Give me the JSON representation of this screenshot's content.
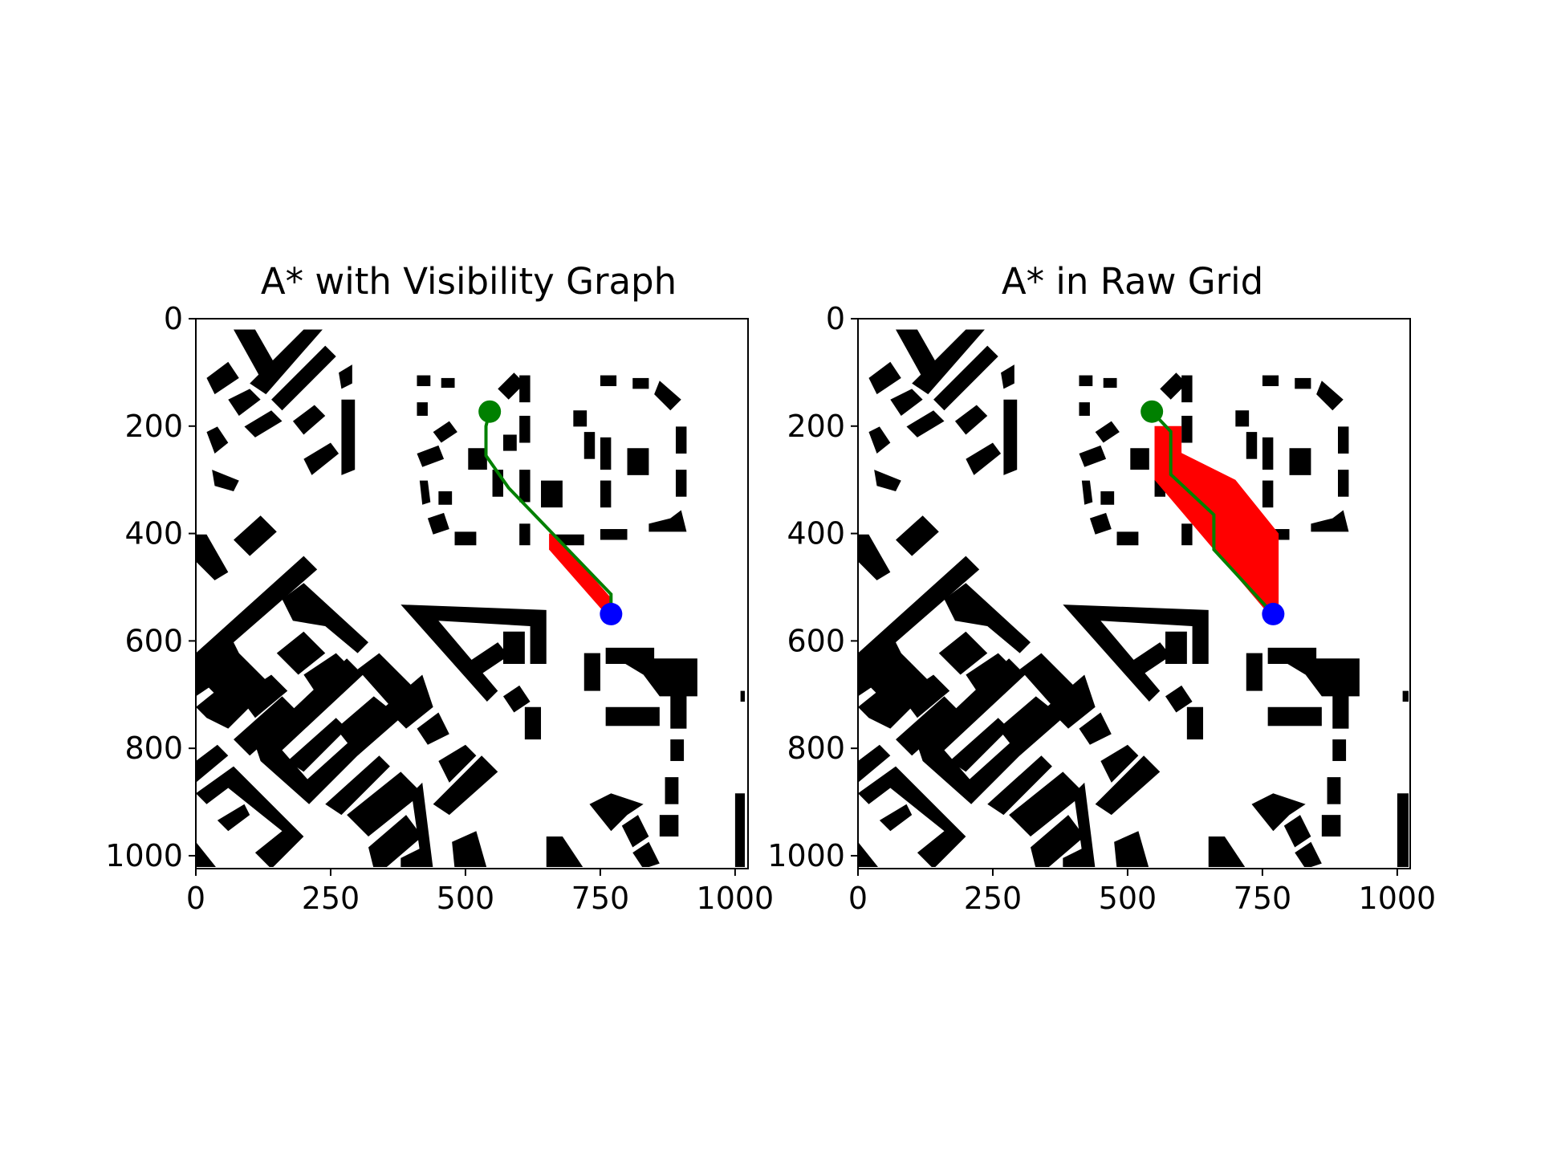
{
  "chart_data": [
    {
      "type": "heatmap",
      "title": "A* with Visibility Graph",
      "xlabel": "",
      "ylabel": "",
      "xlim": [
        0,
        1024
      ],
      "ylim": [
        1024,
        0
      ],
      "xticks": [
        "0",
        "250",
        "500",
        "750",
        "1000"
      ],
      "yticks": [
        "0",
        "200",
        "400",
        "600",
        "800",
        "1000"
      ],
      "start": [
        545,
        173
      ],
      "goal": [
        770,
        550
      ],
      "path": [
        [
          545,
          173
        ],
        [
          538,
          200
        ],
        [
          538,
          255
        ],
        [
          580,
          315
        ],
        [
          770,
          513
        ],
        [
          770,
          550
        ]
      ],
      "explored_region": [
        [
          655,
          400
        ],
        [
          665,
          400
        ],
        [
          770,
          520
        ],
        [
          770,
          550
        ],
        [
          760,
          550
        ],
        [
          655,
          430
        ]
      ],
      "colors": {
        "path": "#008000",
        "start": "#008000",
        "goal": "#0000ff",
        "explored": "#ff0000",
        "obstacles": "#000000"
      }
    },
    {
      "type": "heatmap",
      "title": "A* in Raw Grid",
      "xlabel": "",
      "ylabel": "",
      "xlim": [
        0,
        1024
      ],
      "ylim": [
        1024,
        0
      ],
      "xticks": [
        "0",
        "250",
        "500",
        "750",
        "1000"
      ],
      "yticks": [
        "0",
        "200",
        "400",
        "600",
        "800",
        "1000"
      ],
      "start": [
        545,
        173
      ],
      "goal": [
        770,
        550
      ],
      "path": [
        [
          545,
          173
        ],
        [
          580,
          210
        ],
        [
          580,
          290
        ],
        [
          660,
          365
        ],
        [
          660,
          430
        ],
        [
          770,
          550
        ]
      ],
      "explored_region": [
        [
          550,
          200
        ],
        [
          600,
          200
        ],
        [
          600,
          250
        ],
        [
          700,
          300
        ],
        [
          780,
          400
        ],
        [
          780,
          550
        ],
        [
          770,
          560
        ],
        [
          550,
          300
        ]
      ],
      "colors": {
        "path": "#008000",
        "start": "#008000",
        "goal": "#0000ff",
        "explored": "#ff0000",
        "obstacles": "#000000"
      }
    }
  ]
}
